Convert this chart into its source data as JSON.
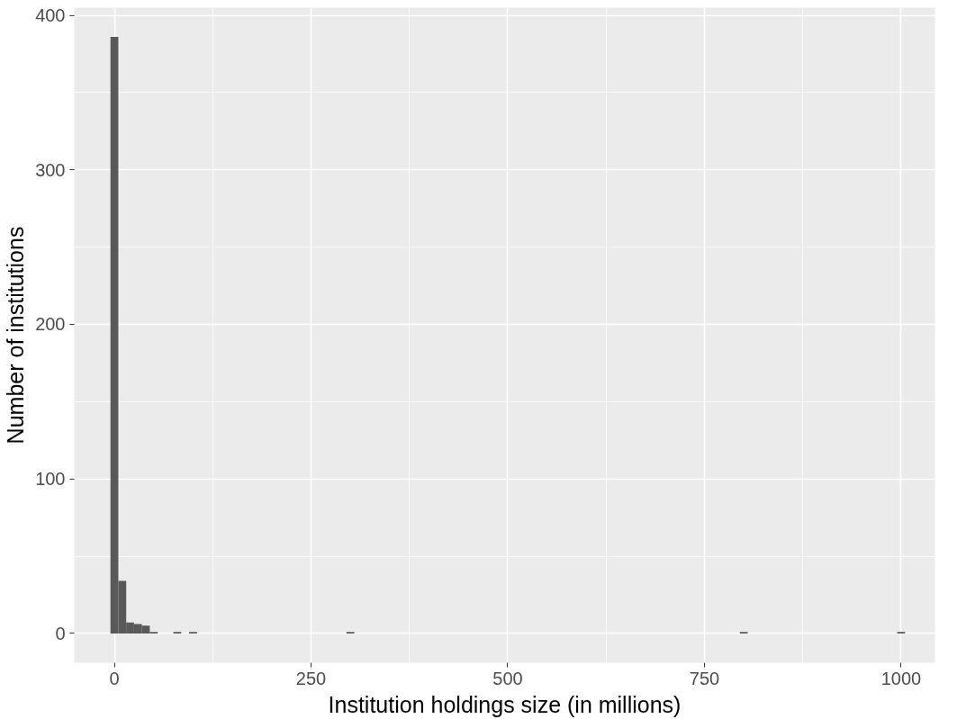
{
  "chart_data": {
    "type": "histogram",
    "xlabel": "Institution holdings size (in millions)",
    "ylabel": "Number of institutions",
    "bins": [
      -5,
      5,
      15,
      25,
      35,
      45,
      55,
      75,
      85,
      95,
      105,
      295,
      305,
      795,
      805,
      995,
      1005
    ],
    "values": [
      386,
      34,
      7,
      6,
      5,
      1,
      0,
      1,
      0,
      1,
      0,
      1,
      0,
      1,
      0,
      1
    ],
    "color": "#595959",
    "xlim": [
      -51,
      1043
    ],
    "ylim": [
      -19,
      405
    ],
    "xticks": [
      0,
      250,
      500,
      750,
      1000
    ],
    "yticks": [
      0,
      100,
      200,
      300,
      400
    ],
    "grid": true
  }
}
